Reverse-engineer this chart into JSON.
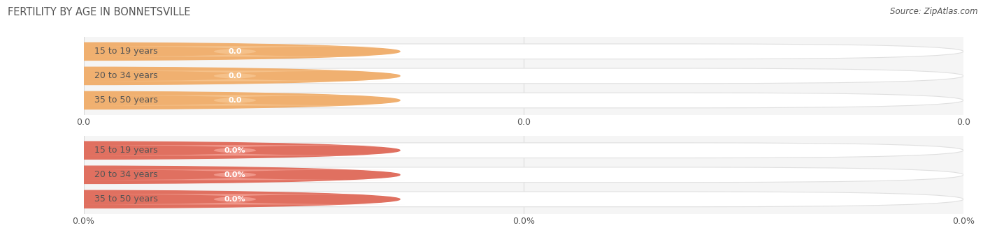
{
  "title": "FERTILITY BY AGE IN BONNETSVILLE",
  "source_text": "Source: ZipAtlas.com",
  "categories": [
    "15 to 19 years",
    "20 to 34 years",
    "35 to 50 years"
  ],
  "values_count": [
    0.0,
    0.0,
    0.0
  ],
  "values_pct": [
    0.0,
    0.0,
    0.0
  ],
  "xtick_labels_count": [
    "0.0",
    "0.0",
    "0.0"
  ],
  "xtick_labels_pct": [
    "0.0%",
    "0.0%",
    "0.0%"
  ],
  "bar_color_count": "#f5c18a",
  "bar_color_pct": "#f0978a",
  "left_circle_color_count": "#f0b070",
  "left_circle_color_pct": "#e07060",
  "bar_bg_color": "#f0f0f0",
  "bar_outline_color": "#e0e0e0",
  "label_color": "#555555",
  "title_color": "#555555",
  "background_color": "#ffffff",
  "panel_bg": "#f5f5f5",
  "grid_color": "#d0d0d0",
  "title_fontsize": 10.5,
  "label_fontsize": 9,
  "value_fontsize": 8,
  "source_fontsize": 8.5
}
